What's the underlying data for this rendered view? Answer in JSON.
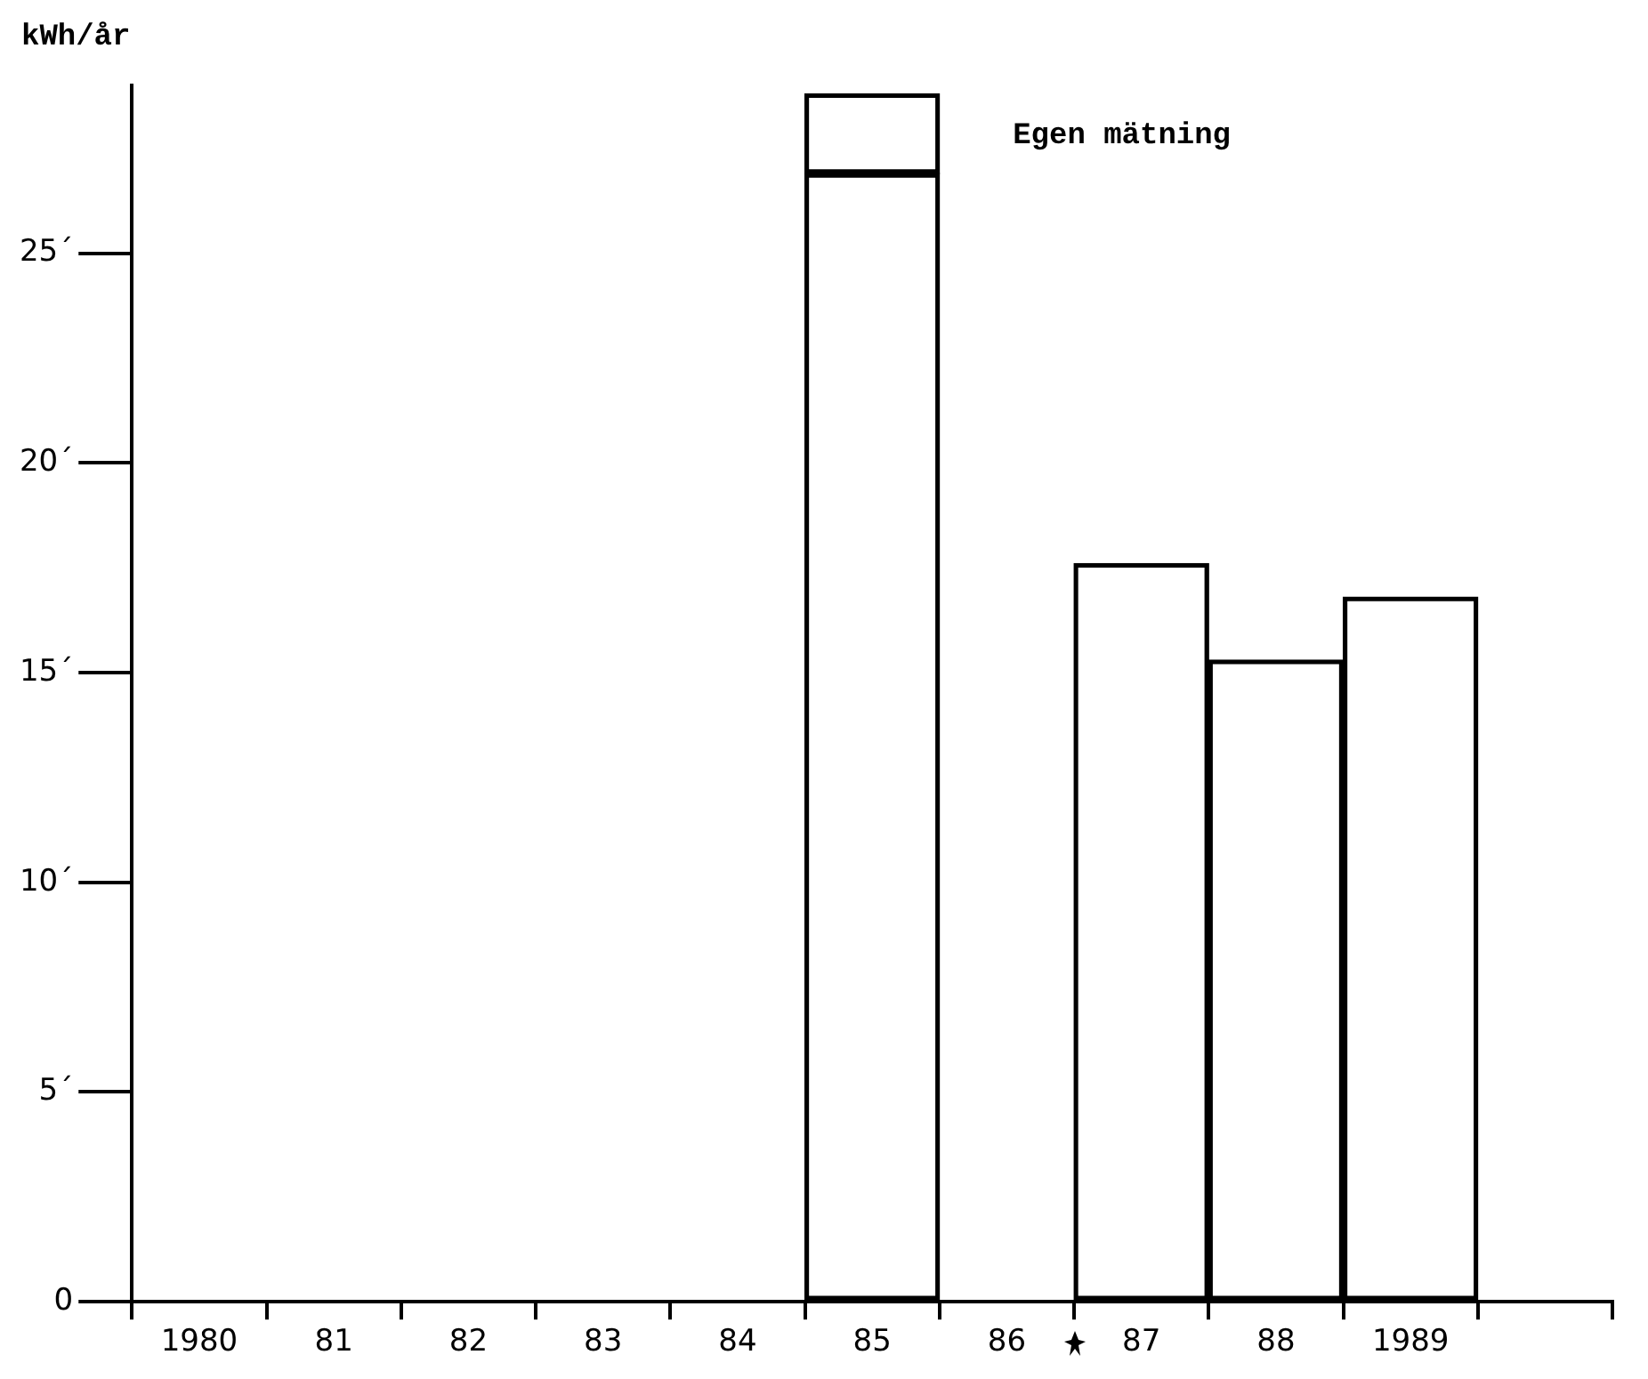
{
  "chart_data": {
    "type": "bar",
    "ylabel": "kWh/år",
    "categories": [
      "1980",
      "81",
      "82",
      "83",
      "84",
      "85",
      "86",
      "87",
      "88",
      "1989",
      null
    ],
    "series": [
      {
        "color": "#000000",
        "values": [
          null,
          null,
          null,
          null,
          null,
          26.9,
          null,
          17.6,
          15.3,
          16.8,
          null
        ]
      },
      {
        "color": "#000000",
        "values": [
          null,
          null,
          null,
          null,
          null,
          1.9,
          null,
          null,
          null,
          null,
          null
        ]
      }
    ],
    "annotations": [
      "Egen mätning"
    ],
    "stacked": true,
    "ylim": [
      0,
      29
    ],
    "yticks": [
      0,
      {
        "value": 5,
        "label": "5´"
      },
      {
        "value": 10,
        "label": "10´"
      },
      {
        "value": 15,
        "label": "15´"
      },
      {
        "value": 20,
        "label": "20´"
      },
      {
        "value": 25,
        "label": "25´"
      }
    ],
    "grid": false,
    "legend": false
  }
}
